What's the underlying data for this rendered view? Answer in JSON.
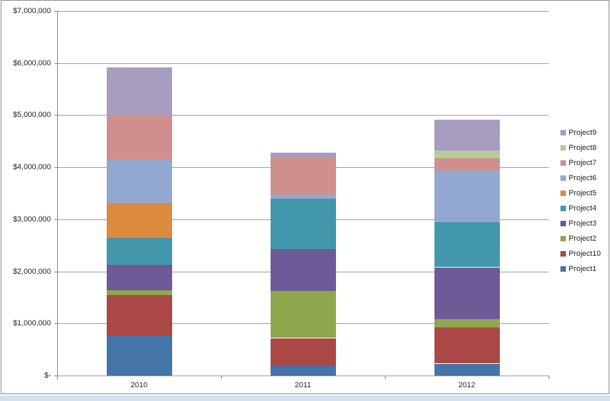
{
  "chart_data": {
    "type": "bar",
    "stacked": true,
    "title": "",
    "xlabel": "",
    "ylabel": "",
    "categories": [
      "2010",
      "2011",
      "2012"
    ],
    "series": [
      {
        "name": "Project1",
        "color": "#4575A7",
        "values": [
          770000,
          190000,
          230000
        ]
      },
      {
        "name": "Project10",
        "color": "#AB4846",
        "values": [
          780000,
          530000,
          690000
        ]
      },
      {
        "name": "Project2",
        "color": "#8FA84E",
        "values": [
          90000,
          910000,
          170000
        ]
      },
      {
        "name": "Project3",
        "color": "#6E5A97",
        "values": [
          490000,
          800000,
          990000
        ]
      },
      {
        "name": "Project4",
        "color": "#4297AB",
        "values": [
          510000,
          960000,
          870000
        ]
      },
      {
        "name": "Project5",
        "color": "#DC8A3E",
        "values": [
          680000,
          0,
          0
        ]
      },
      {
        "name": "Project6",
        "color": "#93A8D0",
        "values": [
          830000,
          80000,
          980000
        ]
      },
      {
        "name": "Project7",
        "color": "#CE8F8D",
        "values": [
          860000,
          730000,
          240000
        ]
      },
      {
        "name": "Project8",
        "color": "#B8CC96",
        "values": [
          0,
          0,
          150000
        ]
      },
      {
        "name": "Project9",
        "color": "#A89CC0",
        "values": [
          910000,
          80000,
          590000
        ]
      }
    ],
    "totals": [
      5920000,
      4280000,
      4910000
    ],
    "ylim": [
      0,
      7000000
    ],
    "grid": true,
    "y_ticks": [
      {
        "value": 0,
        "label": "$-"
      },
      {
        "value": 1000000,
        "label": "$1,000,000"
      },
      {
        "value": 2000000,
        "label": "$2,000,000"
      },
      {
        "value": 3000000,
        "label": "$3,000,000"
      },
      {
        "value": 4000000,
        "label": "$4,000,000"
      },
      {
        "value": 5000000,
        "label": "$5,000,000"
      },
      {
        "value": 6000000,
        "label": "$6,000,000"
      },
      {
        "value": 7000000,
        "label": "$7,000,000"
      }
    ],
    "legend": {
      "position": "right",
      "items": [
        "Project9",
        "Project8",
        "Project7",
        "Project6",
        "Project5",
        "Project4",
        "Project3",
        "Project2",
        "Project10",
        "Project1"
      ]
    }
  },
  "colors": {
    "background": "#FFFFFF",
    "gridline": "#9A9A9A",
    "axis": "#7F7F7F",
    "text": "#1F1F1F",
    "frame_border": "#898989",
    "bottom_strip": "#D3E0EF"
  }
}
